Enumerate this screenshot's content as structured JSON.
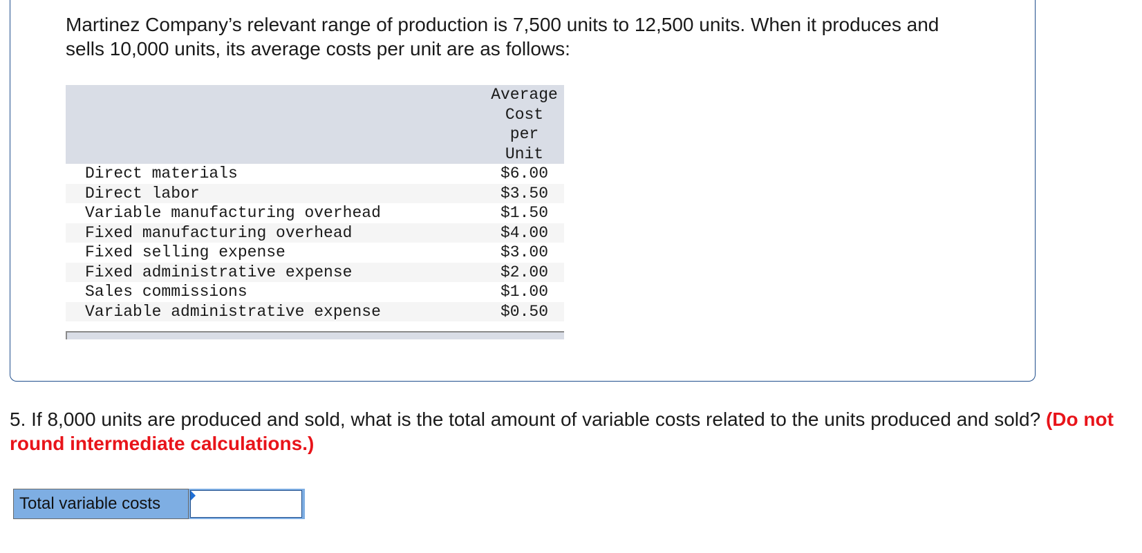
{
  "problem": {
    "intro": "Martinez Company’s relevant range of production is 7,500 units to 12,500 units. When it produces and sells 10,000 units, its average costs per unit are as follows:",
    "table": {
      "column_header_lines": [
        "Average",
        "Cost",
        "per",
        "Unit"
      ],
      "rows": [
        {
          "item": "Direct materials",
          "value": "$6.00"
        },
        {
          "item": "Direct labor",
          "value": "$3.50"
        },
        {
          "item": "Variable manufacturing overhead",
          "value": "$1.50"
        },
        {
          "item": "Fixed manufacturing overhead",
          "value": "$4.00"
        },
        {
          "item": "Fixed selling expense",
          "value": "$3.00"
        },
        {
          "item": "Fixed administrative expense",
          "value": "$2.00"
        },
        {
          "item": "Sales commissions",
          "value": "$1.00"
        },
        {
          "item": "Variable administrative expense",
          "value": "$0.50"
        }
      ]
    }
  },
  "question": {
    "text": "5. If 8,000 units are produced and sold, what is the total amount of variable costs related to the units produced and sold?",
    "warning": "(Do not round intermediate calculations.)"
  },
  "answer": {
    "label": "Total variable costs",
    "value": ""
  },
  "colors": {
    "border": "#1f4e8c",
    "table_header_bg": "#d9dde6",
    "warning": "#e8141a",
    "answer_label_bg": "#7eaee3"
  }
}
